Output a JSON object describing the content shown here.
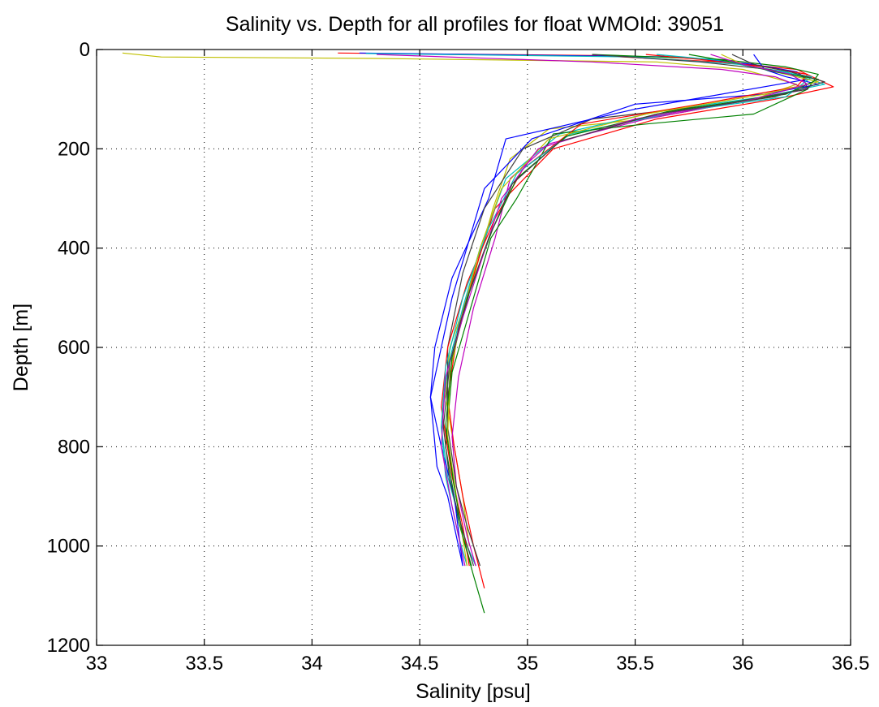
{
  "chart_data": {
    "type": "line",
    "title": "Salinity vs. Depth for all profiles for float WMOId: 39051",
    "xlabel": "Salinity [psu]",
    "ylabel": "Depth [m]",
    "xlim": [
      33,
      36.5
    ],
    "ylim": [
      0,
      1200
    ],
    "y_reversed": true,
    "grid": true,
    "legend": "none",
    "x_ticks": [
      "33",
      "33.5",
      "34",
      "34.5",
      "35",
      "35.5",
      "36",
      "36.5"
    ],
    "y_ticks": [
      "0",
      "200",
      "400",
      "600",
      "800",
      "1000",
      "1200"
    ],
    "colors": [
      "#0000ff",
      "#008000",
      "#ff0000",
      "#00bfbf",
      "#bf00bf",
      "#bfbf00",
      "#404040"
    ],
    "series": [
      {
        "color": "#bfbf00",
        "x": [
          33.12,
          33.3,
          34.3,
          35.6,
          36.0,
          36.25,
          36.05,
          35.55,
          35.1,
          34.92,
          34.84,
          34.75,
          34.64,
          34.62,
          34.66,
          34.7,
          34.73
        ],
        "y": [
          7,
          15,
          18,
          25,
          40,
          70,
          100,
          140,
          160,
          220,
          320,
          460,
          600,
          700,
          800,
          900,
          1000
        ]
      },
      {
        "color": "#ff0000",
        "x": [
          34.12,
          35.3,
          35.9,
          36.25,
          36.42,
          36.15,
          35.6,
          35.12,
          34.85,
          34.76,
          34.68,
          34.63,
          34.66,
          34.7,
          34.75,
          34.8
        ],
        "y": [
          7,
          12,
          25,
          40,
          75,
          100,
          140,
          200,
          320,
          440,
          560,
          700,
          800,
          900,
          1000,
          1085
        ]
      },
      {
        "color": "#0000ff",
        "x": [
          34.22,
          35.7,
          36.05,
          36.25,
          36.3,
          35.5,
          35.1,
          34.9,
          34.82,
          34.65,
          34.57,
          34.55,
          34.58,
          34.63,
          34.68,
          34.7
        ],
        "y": [
          7,
          15,
          30,
          45,
          60,
          120,
          160,
          180,
          300,
          460,
          600,
          700,
          840,
          900,
          1000,
          1040
        ]
      },
      {
        "color": "#00bfbf",
        "x": [
          34.25,
          35.5,
          35.98,
          36.2,
          36.38,
          36.1,
          35.6,
          35.15,
          34.9,
          34.78,
          34.7,
          34.63,
          34.6,
          34.63,
          34.68,
          34.72,
          34.76
        ],
        "y": [
          8,
          15,
          30,
          45,
          70,
          95,
          125,
          170,
          260,
          400,
          520,
          640,
          760,
          860,
          940,
          1000,
          1040
        ]
      },
      {
        "color": "#bf00bf",
        "x": [
          34.3,
          35.3,
          35.9,
          36.15,
          36.3,
          36.05,
          35.55,
          35.1,
          34.92,
          34.85,
          34.75,
          34.68,
          34.65,
          34.67,
          34.72,
          34.76
        ],
        "y": [
          10,
          25,
          40,
          55,
          80,
          100,
          140,
          190,
          260,
          380,
          520,
          660,
          780,
          880,
          980,
          1040
        ]
      },
      {
        "color": "#008000",
        "x": [
          35.3,
          35.9,
          36.2,
          36.35,
          36.3,
          36.05,
          35.55,
          35.12,
          34.95,
          34.83,
          34.75,
          34.65,
          34.62,
          34.68,
          34.75,
          34.8
        ],
        "y": [
          10,
          20,
          35,
          50,
          80,
          130,
          150,
          170,
          300,
          380,
          500,
          650,
          800,
          950,
          1060,
          1135
        ]
      },
      {
        "color": "#404040",
        "x": [
          35.3,
          35.8,
          36.12,
          36.28,
          36.3,
          35.9,
          35.3,
          34.98,
          34.8,
          34.7,
          34.63,
          34.63,
          34.67,
          34.72,
          34.78
        ],
        "y": [
          10,
          25,
          40,
          55,
          80,
          110,
          140,
          200,
          320,
          450,
          600,
          760,
          880,
          960,
          1040
        ]
      },
      {
        "color": "#0000ff",
        "x": [
          36.05,
          36.1,
          36.2,
          36.35,
          36.1,
          35.5,
          35.02,
          34.8,
          34.65,
          34.55,
          34.6,
          34.66,
          34.7
        ],
        "y": [
          10,
          40,
          55,
          70,
          90,
          110,
          180,
          280,
          500,
          700,
          800,
          900,
          1040
        ]
      },
      {
        "color": "#ff0000",
        "x": [
          35.55,
          35.8,
          36.1,
          36.3,
          36.25,
          35.8,
          35.25,
          34.98,
          34.85,
          34.72,
          34.63,
          34.6,
          34.65,
          34.7,
          34.73
        ],
        "y": [
          10,
          20,
          35,
          50,
          75,
          110,
          150,
          240,
          340,
          470,
          600,
          720,
          860,
          960,
          1040
        ]
      },
      {
        "color": "#00bfbf",
        "x": [
          35.6,
          35.9,
          36.1,
          36.32,
          36.2,
          35.7,
          35.2,
          34.95,
          34.82,
          34.7,
          34.62,
          34.6,
          34.62,
          34.68,
          34.72
        ],
        "y": [
          10,
          22,
          40,
          55,
          95,
          125,
          170,
          250,
          360,
          500,
          640,
          760,
          860,
          980,
          1040
        ]
      },
      {
        "color": "#bfbf00",
        "x": [
          35.9,
          36.0,
          36.2,
          36.35,
          36.1,
          35.55,
          35.1,
          34.88,
          34.78,
          34.7,
          34.64,
          34.63,
          34.67,
          34.72
        ],
        "y": [
          10,
          30,
          50,
          65,
          90,
          130,
          180,
          280,
          400,
          530,
          650,
          780,
          900,
          1040
        ]
      },
      {
        "color": "#008000",
        "x": [
          35.75,
          35.95,
          36.15,
          36.35,
          36.2,
          35.65,
          35.18,
          34.95,
          34.84,
          34.73,
          34.65,
          34.62,
          34.66,
          34.7,
          34.74
        ],
        "y": [
          10,
          25,
          45,
          60,
          90,
          125,
          175,
          260,
          360,
          490,
          620,
          760,
          880,
          980,
          1040
        ]
      },
      {
        "color": "#bf00bf",
        "x": [
          35.85,
          36.0,
          36.22,
          36.3,
          36.05,
          35.5,
          35.05,
          34.88,
          34.79,
          34.7,
          34.62,
          34.6,
          34.65,
          34.71
        ],
        "y": [
          10,
          30,
          50,
          70,
          100,
          140,
          200,
          300,
          420,
          540,
          660,
          800,
          920,
          1040
        ]
      },
      {
        "color": "#404040",
        "x": [
          35.95,
          36.05,
          36.22,
          36.38,
          36.15,
          35.6,
          35.15,
          34.93,
          34.82,
          34.72,
          34.64,
          34.61,
          34.64,
          34.7,
          34.75
        ],
        "y": [
          10,
          30,
          45,
          65,
          95,
          130,
          185,
          270,
          380,
          500,
          630,
          760,
          870,
          970,
          1040
        ]
      }
    ]
  }
}
